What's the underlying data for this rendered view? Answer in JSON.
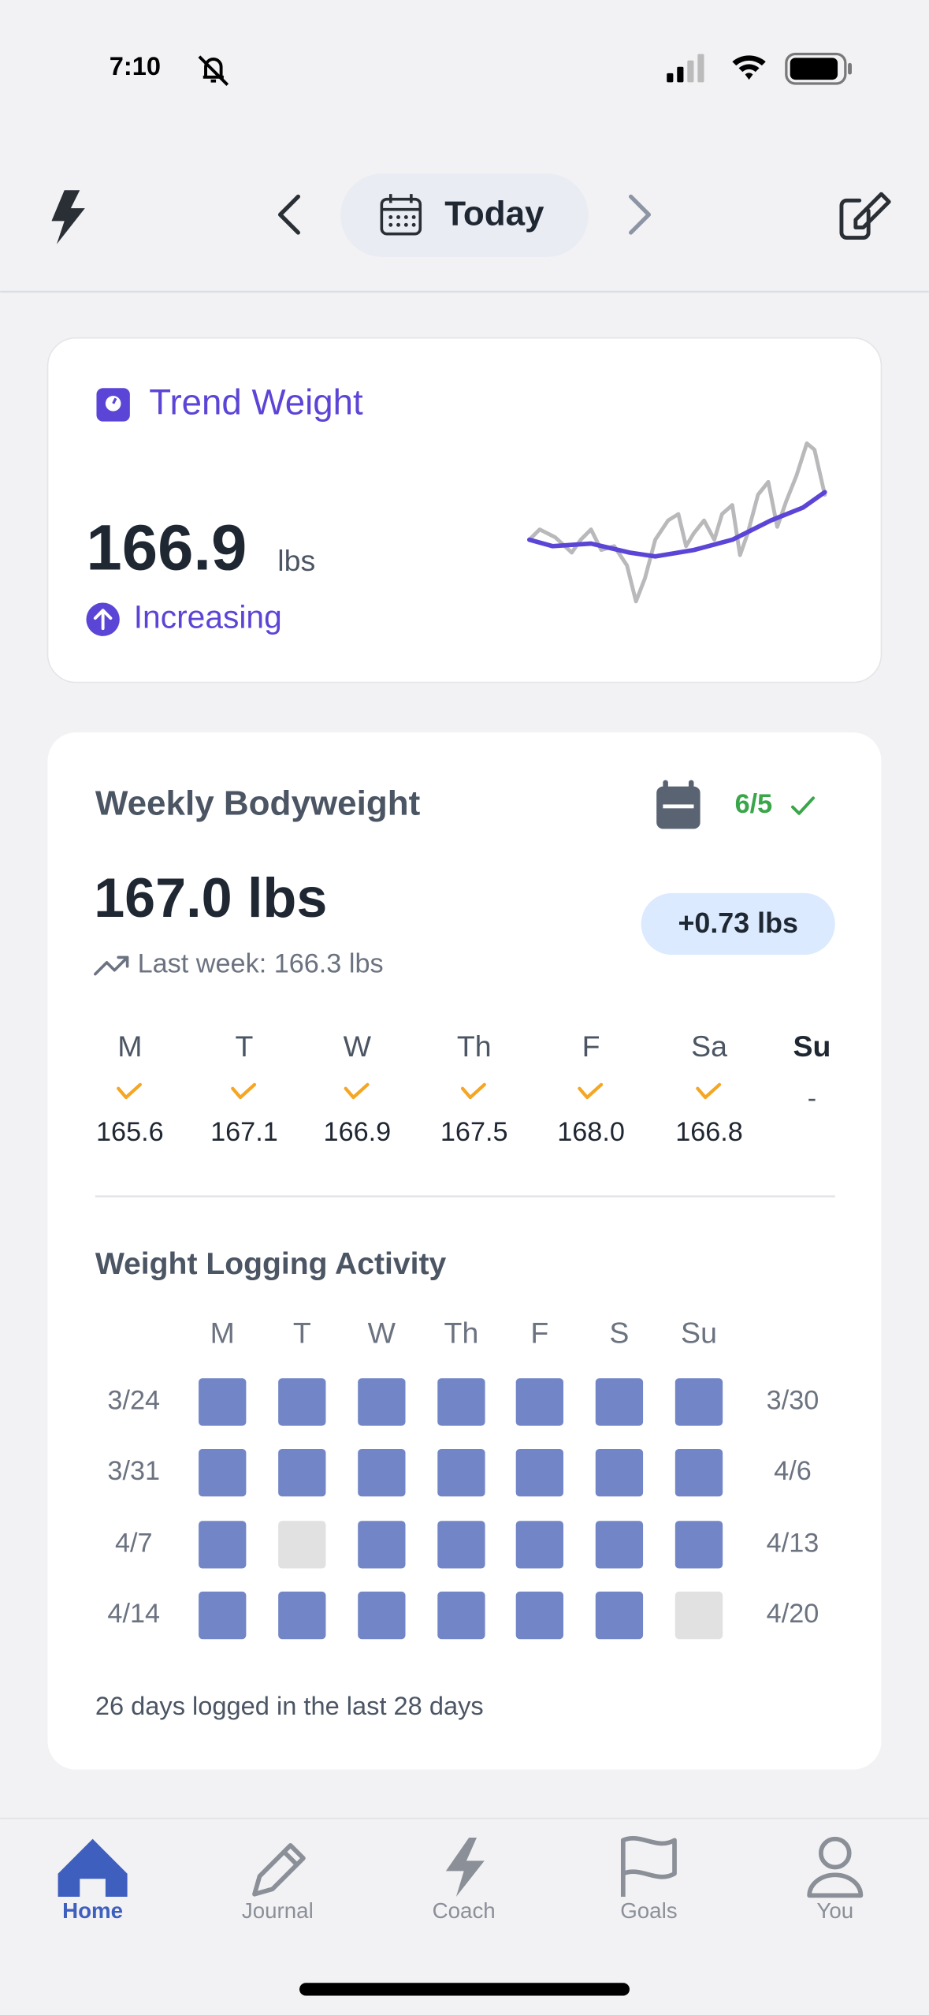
{
  "status_bar": {
    "time": "7:10"
  },
  "header": {
    "date_label": "Today"
  },
  "trend_card": {
    "title": "Trend Weight",
    "value": "166.9",
    "unit": "lbs",
    "status": "Increasing"
  },
  "weekly_card": {
    "title": "Weekly Bodyweight",
    "goal_progress": "6/5",
    "current": "167.0 lbs",
    "last_week": "Last week: 166.3 lbs",
    "change": "+0.73 lbs",
    "days": [
      {
        "label": "M",
        "value": "165.6"
      },
      {
        "label": "T",
        "value": "167.1"
      },
      {
        "label": "W",
        "value": "166.9"
      },
      {
        "label": "Th",
        "value": "167.5"
      },
      {
        "label": "F",
        "value": "168.0"
      },
      {
        "label": "Sa",
        "value": "166.8"
      },
      {
        "label": "Su",
        "value": "-"
      }
    ]
  },
  "activity": {
    "title": "Weight Logging Activity",
    "columns": [
      "M",
      "T",
      "W",
      "Th",
      "F",
      "S",
      "Su"
    ],
    "rows": [
      {
        "start": "3/24",
        "end": "3/30",
        "logged": [
          1,
          1,
          1,
          1,
          1,
          1,
          1
        ]
      },
      {
        "start": "3/31",
        "end": "4/6",
        "logged": [
          1,
          1,
          1,
          1,
          1,
          1,
          1
        ]
      },
      {
        "start": "4/7",
        "end": "4/13",
        "logged": [
          1,
          0,
          1,
          1,
          1,
          1,
          1
        ]
      },
      {
        "start": "4/14",
        "end": "4/20",
        "logged": [
          1,
          1,
          1,
          1,
          1,
          1,
          0
        ]
      }
    ],
    "summary": "26 days logged in the last 28 days"
  },
  "tab_bar": {
    "tabs": [
      "Home",
      "Journal",
      "Coach",
      "Goals",
      "You"
    ],
    "active": 0
  }
}
